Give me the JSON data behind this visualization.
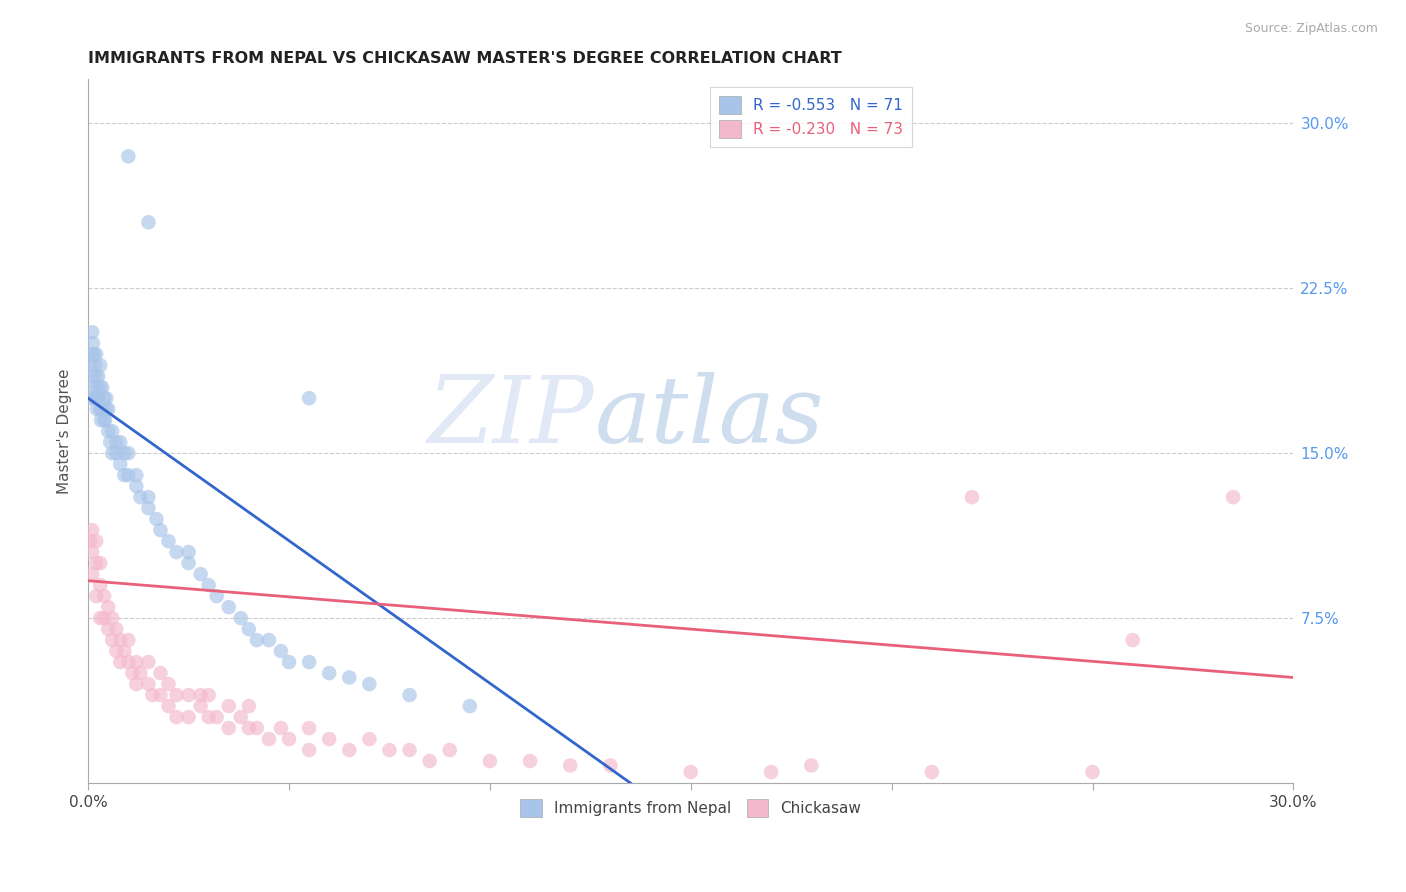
{
  "title": "IMMIGRANTS FROM NEPAL VS CHICKASAW MASTER'S DEGREE CORRELATION CHART",
  "source": "Source: ZipAtlas.com",
  "ylabel": "Master's Degree",
  "legend_blue_r": "R = -0.553",
  "legend_blue_n": "N = 71",
  "legend_pink_r": "R = -0.230",
  "legend_pink_n": "N = 73",
  "blue_color": "#a8c4e8",
  "blue_line_color": "#3366cc",
  "pink_color": "#f4b8cc",
  "pink_line_color": "#e8607a",
  "watermark_zip": "ZIP",
  "watermark_atlas": "atlas",
  "xlim": [
    0.0,
    0.3
  ],
  "ylim": [
    0.0,
    0.32
  ],
  "ytick_vals": [
    0.0,
    0.075,
    0.15,
    0.225,
    0.3
  ],
  "xtick_vals": [
    0.0,
    0.05,
    0.1,
    0.15,
    0.2,
    0.25,
    0.3
  ],
  "blue_x": [
    0.0005,
    0.0008,
    0.001,
    0.001,
    0.0012,
    0.0012,
    0.0015,
    0.0015,
    0.0018,
    0.0018,
    0.002,
    0.002,
    0.002,
    0.0022,
    0.0022,
    0.0025,
    0.0025,
    0.003,
    0.003,
    0.003,
    0.0032,
    0.0035,
    0.0035,
    0.004,
    0.004,
    0.0042,
    0.0045,
    0.0045,
    0.005,
    0.005,
    0.0055,
    0.006,
    0.006,
    0.007,
    0.007,
    0.008,
    0.008,
    0.009,
    0.009,
    0.01,
    0.01,
    0.012,
    0.012,
    0.013,
    0.015,
    0.015,
    0.017,
    0.018,
    0.02,
    0.022,
    0.025,
    0.025,
    0.028,
    0.03,
    0.032,
    0.035,
    0.038,
    0.04,
    0.042,
    0.045,
    0.048,
    0.05,
    0.055,
    0.06,
    0.065,
    0.07,
    0.08,
    0.095,
    0.01,
    0.015,
    0.055
  ],
  "blue_y": [
    0.175,
    0.19,
    0.205,
    0.195,
    0.185,
    0.2,
    0.18,
    0.195,
    0.175,
    0.19,
    0.175,
    0.185,
    0.195,
    0.17,
    0.18,
    0.175,
    0.185,
    0.17,
    0.18,
    0.19,
    0.165,
    0.17,
    0.18,
    0.165,
    0.175,
    0.165,
    0.17,
    0.175,
    0.16,
    0.17,
    0.155,
    0.15,
    0.16,
    0.15,
    0.155,
    0.145,
    0.155,
    0.14,
    0.15,
    0.14,
    0.15,
    0.135,
    0.14,
    0.13,
    0.125,
    0.13,
    0.12,
    0.115,
    0.11,
    0.105,
    0.1,
    0.105,
    0.095,
    0.09,
    0.085,
    0.08,
    0.075,
    0.07,
    0.065,
    0.065,
    0.06,
    0.055,
    0.055,
    0.05,
    0.048,
    0.045,
    0.04,
    0.035,
    0.285,
    0.255,
    0.175
  ],
  "pink_x": [
    0.0005,
    0.001,
    0.001,
    0.001,
    0.002,
    0.002,
    0.002,
    0.003,
    0.003,
    0.003,
    0.004,
    0.004,
    0.005,
    0.005,
    0.006,
    0.006,
    0.007,
    0.007,
    0.008,
    0.008,
    0.009,
    0.01,
    0.01,
    0.011,
    0.012,
    0.012,
    0.013,
    0.015,
    0.015,
    0.016,
    0.018,
    0.018,
    0.02,
    0.02,
    0.022,
    0.022,
    0.025,
    0.025,
    0.028,
    0.028,
    0.03,
    0.03,
    0.032,
    0.035,
    0.035,
    0.038,
    0.04,
    0.04,
    0.042,
    0.045,
    0.048,
    0.05,
    0.055,
    0.055,
    0.06,
    0.065,
    0.07,
    0.075,
    0.08,
    0.085,
    0.09,
    0.1,
    0.11,
    0.12,
    0.13,
    0.15,
    0.17,
    0.18,
    0.21,
    0.25,
    0.22,
    0.26,
    0.285
  ],
  "pink_y": [
    0.11,
    0.105,
    0.115,
    0.095,
    0.1,
    0.11,
    0.085,
    0.09,
    0.1,
    0.075,
    0.085,
    0.075,
    0.08,
    0.07,
    0.075,
    0.065,
    0.07,
    0.06,
    0.065,
    0.055,
    0.06,
    0.055,
    0.065,
    0.05,
    0.055,
    0.045,
    0.05,
    0.045,
    0.055,
    0.04,
    0.05,
    0.04,
    0.045,
    0.035,
    0.04,
    0.03,
    0.04,
    0.03,
    0.04,
    0.035,
    0.03,
    0.04,
    0.03,
    0.035,
    0.025,
    0.03,
    0.025,
    0.035,
    0.025,
    0.02,
    0.025,
    0.02,
    0.025,
    0.015,
    0.02,
    0.015,
    0.02,
    0.015,
    0.015,
    0.01,
    0.015,
    0.01,
    0.01,
    0.008,
    0.008,
    0.005,
    0.005,
    0.008,
    0.005,
    0.005,
    0.13,
    0.065,
    0.13
  ],
  "blue_line_x0": 0.0,
  "blue_line_x1": 0.135,
  "blue_line_y0": 0.175,
  "blue_line_y1": 0.0,
  "pink_line_x0": 0.0,
  "pink_line_x1": 0.3,
  "pink_line_y0": 0.092,
  "pink_line_y1": 0.048
}
